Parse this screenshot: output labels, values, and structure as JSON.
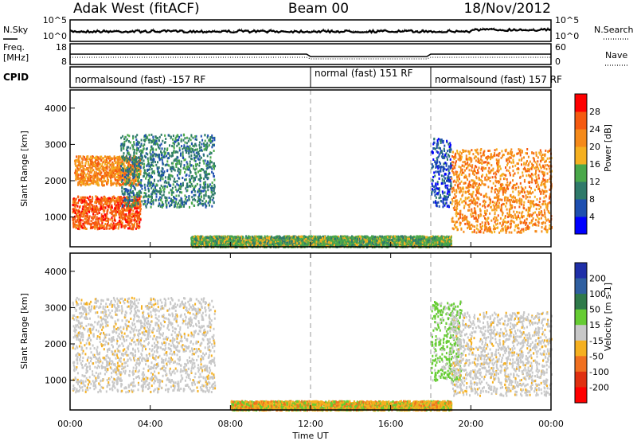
{
  "title": {
    "left": "Adak West (fitACF)",
    "center": "Beam 00",
    "right": "18/Nov/2012"
  },
  "time_axis": {
    "label": "Time UT",
    "ticks": [
      "00:00",
      "04:00",
      "08:00",
      "12:00",
      "16:00",
      "20:00",
      "00:00"
    ],
    "tick_hours": [
      0,
      4,
      8,
      12,
      16,
      20,
      24
    ]
  },
  "noise_panel": {
    "left_label": "N.Sky",
    "right_label": "N.Search",
    "left_ticks": [
      "10^5",
      "10^0"
    ],
    "right_ticks": [
      "10^5",
      "10^0"
    ]
  },
  "freq_panel": {
    "left_label_1": "Freq.",
    "left_label_2": "[MHz]",
    "right_label": "Nave",
    "left_ticks": [
      "18",
      "8"
    ],
    "right_ticks": [
      "60",
      "0"
    ]
  },
  "cpid_panel": {
    "label": "CPID",
    "segments": [
      {
        "start_hour": 0,
        "end_hour": 12,
        "text": "normalsound (fast) -157 RF"
      },
      {
        "start_hour": 12,
        "end_hour": 18,
        "text": "normal (fast) 151 RF"
      },
      {
        "start_hour": 18,
        "end_hour": 24,
        "text": "normalsound (fast) 157 RF"
      }
    ]
  },
  "power_panel": {
    "ylabel": "Slant Range [km]",
    "yticks": [
      1000,
      2000,
      3000,
      4000
    ],
    "colorbar_label": "Power [dB]",
    "colorbar_ticks": [
      "4",
      "8",
      "12",
      "16",
      "20",
      "24",
      "28"
    ],
    "colors": [
      "#0000ff",
      "#1e4fb0",
      "#2f7a6a",
      "#4aa84a",
      "#f5b020",
      "#f58a1a",
      "#f55a10",
      "#ff0000"
    ]
  },
  "velocity_panel": {
    "ylabel": "Slant Range [km]",
    "yticks": [
      1000,
      2000,
      3000,
      4000
    ],
    "colorbar_label": "Velocity [m s-1]",
    "colorbar_ticks": [
      "200",
      "100",
      "50",
      "15",
      "-15",
      "-50",
      "-100",
      "-200"
    ],
    "colors": [
      "#1f2fa8",
      "#2f5fa0",
      "#2f7a4a",
      "#66cc33",
      "#c8c8c8",
      "#f5b020",
      "#f07020",
      "#e03010",
      "#ff0000"
    ]
  },
  "chart_data": {
    "type": "heatmap",
    "x_units": "hours UT",
    "xlim": [
      0,
      24
    ],
    "ylim": [
      180,
      4500
    ],
    "mode_boundaries_hours": [
      12,
      18
    ],
    "power_echo_regions": [
      {
        "t_start": 0.1,
        "t_end": 3.5,
        "r_min": 700,
        "r_max": 1600,
        "power_db": 28
      },
      {
        "t_start": 0.2,
        "t_end": 3.5,
        "r_min": 1900,
        "r_max": 2700,
        "power_db": 24
      },
      {
        "t_start": 2.5,
        "t_end": 7.2,
        "r_min": 1300,
        "r_max": 3300,
        "power_db": 12
      },
      {
        "t_start": 18.0,
        "t_end": 19.0,
        "r_min": 1300,
        "r_max": 3200,
        "power_db": 6
      },
      {
        "t_start": 19.0,
        "t_end": 24.0,
        "r_min": 600,
        "r_max": 2900,
        "power_db": 24
      },
      {
        "t_start": 6.0,
        "t_end": 19.0,
        "r_min": 200,
        "r_max": 500,
        "power_db": 16
      }
    ],
    "velocity_echo_regions": [
      {
        "t_start": 0.1,
        "t_end": 7.2,
        "r_min": 700,
        "r_max": 3300,
        "velocity": 0
      },
      {
        "t_start": 18.0,
        "t_end": 19.5,
        "r_min": 1000,
        "r_max": 3200,
        "velocity": 50
      },
      {
        "t_start": 19.0,
        "t_end": 24.0,
        "r_min": 600,
        "r_max": 2900,
        "velocity": 0
      },
      {
        "t_start": 8.0,
        "t_end": 19.0,
        "r_min": 200,
        "r_max": 450,
        "velocity": -30
      }
    ],
    "noise_sky_level": "~10^0.7",
    "freq_level_mhz": 10,
    "nave_level": 40
  }
}
